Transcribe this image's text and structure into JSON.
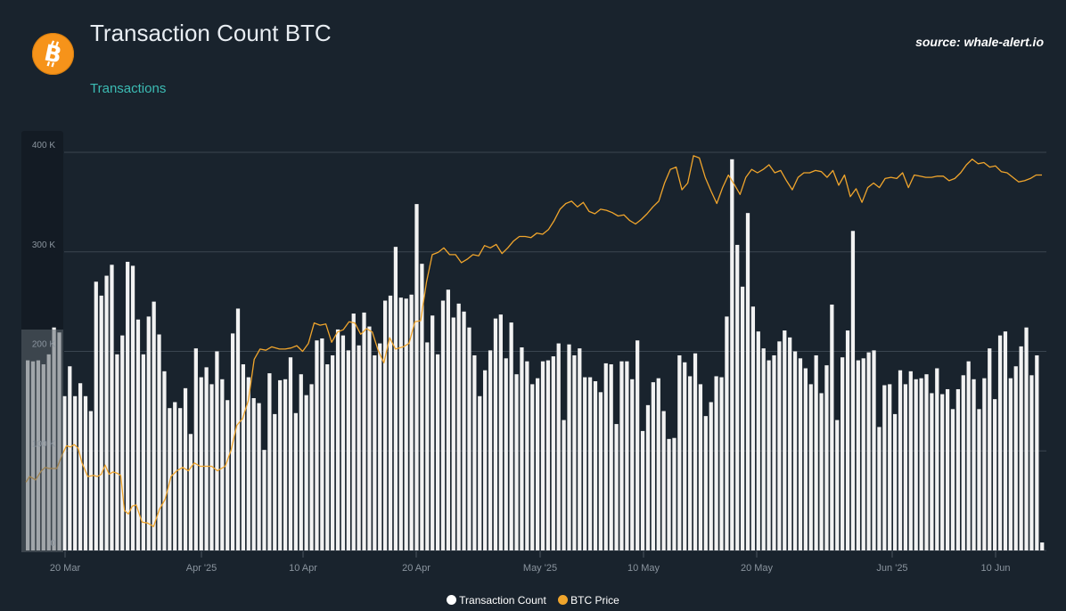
{
  "header": {
    "title": "Transaction Count BTC",
    "subtitle": "Transactions",
    "source": "source: whale-alert.io",
    "logo_icon": "bitcoin-icon"
  },
  "colors": {
    "background": "#19232d",
    "bars": "#f2f2f2",
    "price_line": "#f0a52c",
    "subtitle": "#3cbcb4",
    "grid": "#3a4550"
  },
  "legend": {
    "count_label": "Transaction Count",
    "price_label": "BTC Price"
  },
  "chart_data": {
    "type": "bar",
    "title": "Transaction Count BTC",
    "subtitle": "Transactions",
    "grid": true,
    "legend_position": "bottom",
    "x_tick_labels": [
      "20 Mar",
      "Apr '25",
      "10 Apr",
      "20 Apr",
      "May '25",
      "10 May",
      "20 May",
      "Jun '25",
      "10 Jun"
    ],
    "y_tick_labels": [
      "0",
      "100 K",
      "200 K",
      "300 K",
      "400 K"
    ],
    "ylim": [
      0,
      400000
    ],
    "x_start": "2025-03-14",
    "x_end": "2025-06-14",
    "series": [
      {
        "name": "Transaction Count",
        "type": "bar",
        "axis": "left",
        "values": [
          191000,
          190000,
          191000,
          187000,
          197000,
          224000,
          219000,
          155000,
          185000,
          155000,
          168000,
          155000,
          140000,
          270000,
          256000,
          276000,
          287000,
          197000,
          216000,
          290000,
          286000,
          232000,
          197000,
          235000,
          250000,
          217000,
          180000,
          143000,
          149000,
          143000,
          163000,
          117000,
          203000,
          174000,
          184000,
          167000,
          200000,
          172000,
          151000,
          218000,
          243000,
          187000,
          174000,
          153000,
          148000,
          101000,
          178000,
          137000,
          171000,
          172000,
          194000,
          138000,
          177000,
          156000,
          167000,
          211000,
          213000,
          187000,
          196000,
          222000,
          216000,
          201000,
          238000,
          206000,
          239000,
          225000,
          196000,
          208000,
          251000,
          256000,
          305000,
          254000,
          253000,
          257000,
          348000,
          288000,
          209000,
          236000,
          197000,
          251000,
          262000,
          234000,
          248000,
          240000,
          224000,
          196000,
          155000,
          181000,
          201000,
          233000,
          237000,
          193000,
          229000,
          177000,
          204000,
          190000,
          167000,
          173000,
          190000,
          191000,
          195000,
          208000,
          131000,
          207000,
          196000,
          203000,
          174000,
          174000,
          170000,
          159000,
          188000,
          187000,
          127000,
          190000,
          190000,
          172000,
          211000,
          120000,
          146000,
          169000,
          173000,
          140000,
          112000,
          113000,
          196000,
          189000,
          175000,
          198000,
          167000,
          135000,
          149000,
          175000,
          174000,
          235000,
          393000,
          307000,
          265000,
          339000,
          245000,
          220000,
          203000,
          191000,
          196000,
          210000,
          221000,
          214000,
          200000,
          193000,
          183000,
          167000,
          196000,
          158000,
          186000,
          247000,
          131000,
          194000,
          221000,
          321000,
          191000,
          193000,
          199000,
          201000,
          124000,
          166000,
          167000,
          137000,
          181000,
          167000,
          180000,
          172000,
          173000,
          177000,
          158000,
          183000,
          157000,
          162000,
          142000,
          162000,
          176000,
          190000,
          172000,
          142000,
          173000,
          203000,
          152000,
          216000,
          220000,
          173000,
          185000,
          205000,
          224000,
          176000,
          196000,
          8000
        ]
      },
      {
        "name": "BTC Price",
        "type": "line",
        "axis": "right",
        "points": [
          [
            0,
            83000
          ],
          [
            2,
            83500
          ],
          [
            5,
            83200
          ],
          [
            8,
            84000
          ],
          [
            10,
            84300
          ],
          [
            12,
            84200
          ],
          [
            14,
            84200
          ],
          [
            16,
            84200
          ],
          [
            19,
            85500
          ],
          [
            21,
            86200
          ],
          [
            23,
            86100
          ],
          [
            25,
            86300
          ],
          [
            27,
            86000
          ],
          [
            29,
            84700
          ],
          [
            32,
            83500
          ],
          [
            35,
            83600
          ],
          [
            37,
            83500
          ],
          [
            39,
            83700
          ],
          [
            41,
            84500
          ],
          [
            43,
            83700
          ],
          [
            45,
            83900
          ],
          [
            47,
            83800
          ],
          [
            49,
            83600
          ],
          [
            51,
            80500
          ],
          [
            53,
            80200
          ],
          [
            55,
            80900
          ],
          [
            57,
            81000
          ],
          [
            60,
            79500
          ],
          [
            63,
            79400
          ],
          [
            66,
            79100
          ],
          [
            69,
            80600
          ],
          [
            72,
            81500
          ],
          [
            75,
            83500
          ],
          [
            78,
            84000
          ],
          [
            81,
            84300
          ],
          [
            84,
            84000
          ],
          [
            87,
            84700
          ],
          [
            90,
            84400
          ],
          [
            93,
            84400
          ],
          [
            96,
            84400
          ],
          [
            99,
            84000
          ],
          [
            103,
            84400
          ],
          [
            106,
            85800
          ],
          [
            109,
            88000
          ],
          [
            112,
            88600
          ],
          [
            115,
            90200
          ],
          [
            118,
            93800
          ],
          [
            121,
            94700
          ],
          [
            124,
            94600
          ],
          [
            127,
            94900
          ],
          [
            131,
            94700
          ],
          [
            134,
            94700
          ],
          [
            137,
            94800
          ],
          [
            140,
            95000
          ],
          [
            143,
            94500
          ],
          [
            146,
            95200
          ],
          [
            149,
            97000
          ],
          [
            152,
            96800
          ],
          [
            155,
            96900
          ],
          [
            158,
            95300
          ],
          [
            161,
            96200
          ],
          [
            164,
            96400
          ],
          [
            167,
            97100
          ],
          [
            170,
            97000
          ],
          [
            173,
            96000
          ],
          [
            176,
            96500
          ],
          [
            179,
            96200
          ],
          [
            182,
            94600
          ],
          [
            185,
            93500
          ],
          [
            188,
            95700
          ],
          [
            191,
            94700
          ],
          [
            195,
            94900
          ],
          [
            198,
            95200
          ],
          [
            201,
            97100
          ],
          [
            204,
            97200
          ],
          [
            207,
            100600
          ],
          [
            210,
            103000
          ],
          [
            213,
            103200
          ],
          [
            216,
            103600
          ],
          [
            219,
            103000
          ],
          [
            222,
            103000
          ],
          [
            225,
            102300
          ],
          [
            228,
            102600
          ],
          [
            231,
            103000
          ],
          [
            234,
            102900
          ],
          [
            237,
            103800
          ],
          [
            240,
            103600
          ],
          [
            243,
            103900
          ],
          [
            246,
            103100
          ],
          [
            249,
            103600
          ],
          [
            252,
            104200
          ],
          [
            255,
            104600
          ],
          [
            258,
            104600
          ],
          [
            261,
            104500
          ],
          [
            264,
            104900
          ],
          [
            267,
            104800
          ],
          [
            270,
            105200
          ],
          [
            273,
            106000
          ],
          [
            276,
            107000
          ],
          [
            279,
            107500
          ],
          [
            282,
            107700
          ],
          [
            285,
            107200
          ],
          [
            288,
            107600
          ],
          [
            291,
            106800
          ],
          [
            294,
            106600
          ],
          [
            297,
            107000
          ],
          [
            300,
            106900
          ],
          [
            303,
            106700
          ],
          [
            306,
            106400
          ],
          [
            309,
            106500
          ],
          [
            312,
            106000
          ],
          [
            315,
            105700
          ],
          [
            318,
            106100
          ],
          [
            321,
            106600
          ],
          [
            324,
            107200
          ],
          [
            327,
            107700
          ],
          [
            330,
            109300
          ],
          [
            333,
            110500
          ],
          [
            336,
            110700
          ],
          [
            339,
            108700
          ],
          [
            342,
            109300
          ],
          [
            345,
            111700
          ],
          [
            348,
            111500
          ],
          [
            351,
            109800
          ],
          [
            354,
            108600
          ],
          [
            357,
            107500
          ],
          [
            360,
            108900
          ],
          [
            363,
            110000
          ],
          [
            366,
            109200
          ],
          [
            369,
            108300
          ],
          [
            372,
            109800
          ],
          [
            375,
            110500
          ],
          [
            378,
            110200
          ],
          [
            381,
            110500
          ],
          [
            384,
            110900
          ],
          [
            387,
            110200
          ],
          [
            390,
            110400
          ],
          [
            393,
            109500
          ],
          [
            396,
            108700
          ],
          [
            399,
            109800
          ],
          [
            402,
            110200
          ],
          [
            405,
            110200
          ],
          [
            408,
            110400
          ],
          [
            411,
            110300
          ],
          [
            414,
            109800
          ],
          [
            417,
            110400
          ],
          [
            420,
            109100
          ],
          [
            423,
            110000
          ],
          [
            426,
            108100
          ],
          [
            429,
            108800
          ],
          [
            432,
            107600
          ],
          [
            435,
            108900
          ],
          [
            438,
            109300
          ],
          [
            441,
            108900
          ],
          [
            444,
            109700
          ],
          [
            447,
            109800
          ],
          [
            450,
            109700
          ],
          [
            453,
            110200
          ],
          [
            456,
            108900
          ],
          [
            459,
            110000
          ],
          [
            462,
            109900
          ],
          [
            465,
            109800
          ],
          [
            468,
            109800
          ],
          [
            471,
            109900
          ],
          [
            474,
            109900
          ],
          [
            477,
            109500
          ],
          [
            480,
            109700
          ],
          [
            483,
            110200
          ],
          [
            486,
            110900
          ],
          [
            489,
            111400
          ],
          [
            492,
            111000
          ],
          [
            495,
            111100
          ],
          [
            498,
            110700
          ],
          [
            501,
            110800
          ],
          [
            504,
            110300
          ],
          [
            507,
            110200
          ],
          [
            510,
            109800
          ],
          [
            513,
            109400
          ],
          [
            516,
            109500
          ],
          [
            519,
            109700
          ],
          [
            522,
            110000
          ],
          [
            525,
            110000
          ]
        ]
      }
    ]
  }
}
